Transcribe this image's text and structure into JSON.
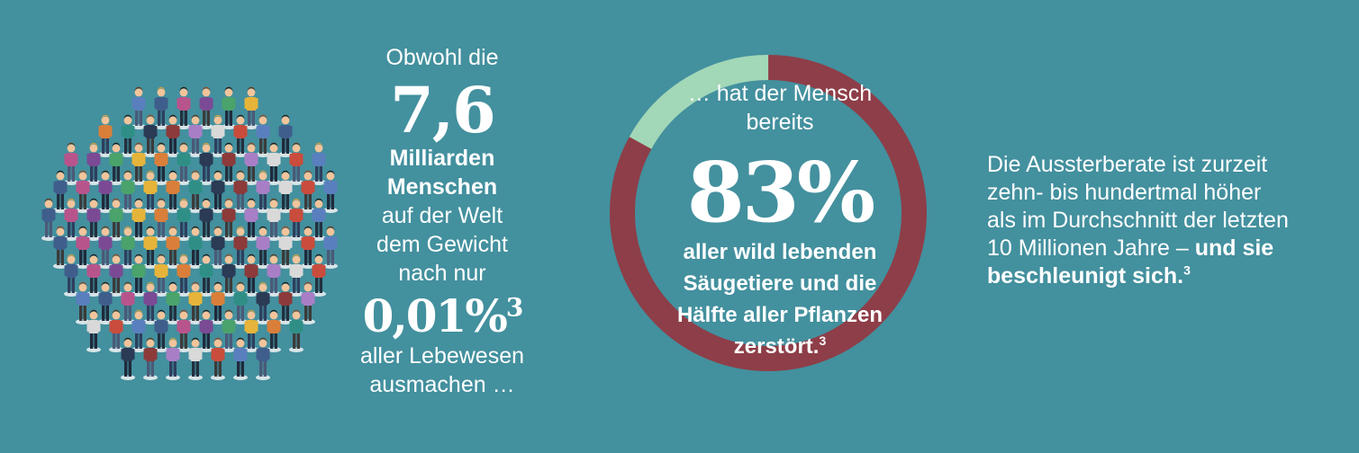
{
  "people_block": {
    "intro": "Obwohl die",
    "number": "7,6",
    "bold_line1": "Milliarden",
    "bold_line2": "Menschen",
    "line1": "auf der Welt",
    "line2": "dem Gewicht",
    "line3": "nach nur",
    "percent": "0,01%",
    "percent_note": "3",
    "line4": "aller Lebewesen",
    "line5": "ausmachen …"
  },
  "donut_block": {
    "intro_line1": "… hat der Mensch",
    "intro_line2": "bereits",
    "percent": "83%",
    "bold_line1": "aller wild lebenden",
    "bold_line2": "Säugetiere und die",
    "bold_line3": "Hälfte aller Pflanzen",
    "bold_line4": "zerstört.",
    "note": "3",
    "destroyed_share": 0.83,
    "colors": {
      "destroyed": "#8e3e48",
      "remaining": "#a2d7b7",
      "background": "#43909e"
    }
  },
  "rate_block": {
    "line1": "Die Aussterberate ist zurzeit",
    "line2": "zehn- bis hundertmal höher",
    "line3": "als im Durchschnitt der letzten",
    "line4_plain": "10 Millionen Jahre –",
    "line4_bold": "und sie",
    "line5_bold": "beschleunigt sich.",
    "note": "3"
  },
  "crowd": {
    "icon": "crowd-of-people-icon"
  }
}
